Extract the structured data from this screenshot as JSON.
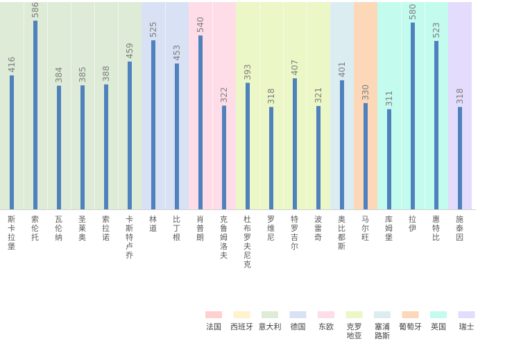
{
  "chart_data": {
    "type": "bar",
    "title": "",
    "xlabel": "",
    "ylabel": "",
    "ylim": [
      0,
      620
    ],
    "grid": false,
    "legend_position": "bottom-right",
    "bar_color": "#4f81bd",
    "categories": [
      "斯卡拉堡",
      "索伦托",
      "瓦伦纳",
      "圣莱奥",
      "索拉诺",
      "卡斯特卢乔",
      "林道",
      "比丁根",
      "肖普朗",
      "克鲁姆洛夫",
      "杜布罗夫尼克",
      "罗维尼",
      "特罗吉尔",
      "波雷奇",
      "奥比都斯",
      "马尔旺",
      "库姆堡",
      "拉伊",
      "惠特比",
      "施泰因"
    ],
    "values": [
      416,
      586,
      384,
      385,
      388,
      459,
      525,
      453,
      540,
      322,
      393,
      318,
      407,
      321,
      401,
      330,
      311,
      580,
      523,
      318
    ],
    "groups": [
      {
        "name": "法国",
        "color": "#ffd0d0",
        "count": 0
      },
      {
        "name": "西班牙",
        "color": "#fff2cc",
        "count": 0
      },
      {
        "name": "意大利",
        "color": "#deebd6",
        "count": 6
      },
      {
        "name": "德国",
        "color": "#d9e1f4",
        "count": 2
      },
      {
        "name": "东欧",
        "color": "#ffdde8",
        "count": 2
      },
      {
        "name": "克罗地亚",
        "color": "#ebf7c6",
        "count": 4
      },
      {
        "name": "塞浦路斯",
        "color": "#dcedf2",
        "count": 1
      },
      {
        "name": "葡萄牙",
        "color": "#fcd7b8",
        "count": 1
      },
      {
        "name": "英国",
        "color": "#c4fbef",
        "count": 3
      },
      {
        "name": "瑞士",
        "color": "#e3dcfc",
        "count": 1
      }
    ]
  }
}
